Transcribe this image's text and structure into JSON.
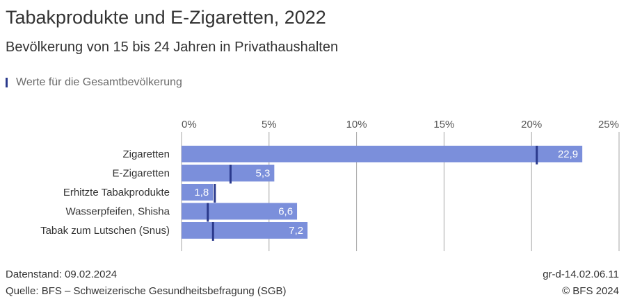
{
  "header": {
    "title": "Tabakprodukte und E-Zigaretten, 2022",
    "subtitle": "Bevölkerung von 15 bis 24 Jahren in Privathaushalten",
    "legend_label": "Werte für die Gesamtbevölkerung"
  },
  "footer": {
    "datenstand": "Datenstand: 09.02.2024",
    "quelle": "Quelle: BFS – Schweizerische Gesundheitsbefragung (SGB)",
    "code": "gr-d-14.02.06.11",
    "copyright": "© BFS 2024"
  },
  "colors": {
    "bar": "#7b8fdb",
    "marker": "#2b3a8c",
    "grid": "#a6a6a6"
  },
  "chart_data": {
    "type": "bar",
    "orientation": "horizontal",
    "categories": [
      "Zigaretten",
      "E-Zigaretten",
      "Erhitzte Tabakprodukte",
      "Wasserpfeifen, Shisha",
      "Tabak zum Lutschen (Snus)"
    ],
    "values": [
      22.9,
      5.3,
      1.8,
      6.6,
      7.2
    ],
    "value_labels": [
      "22,9",
      "5,3",
      "1,8",
      "6,6",
      "7,2"
    ],
    "reference_values": [
      20.3,
      2.8,
      1.9,
      1.5,
      1.8
    ],
    "ticks": [
      0,
      5,
      10,
      15,
      20,
      25
    ],
    "tick_labels": [
      "0%",
      "5%",
      "10%",
      "15%",
      "20%",
      "25%"
    ],
    "xlim": [
      0,
      25
    ],
    "grid": true,
    "legend_placement": "top-left"
  }
}
